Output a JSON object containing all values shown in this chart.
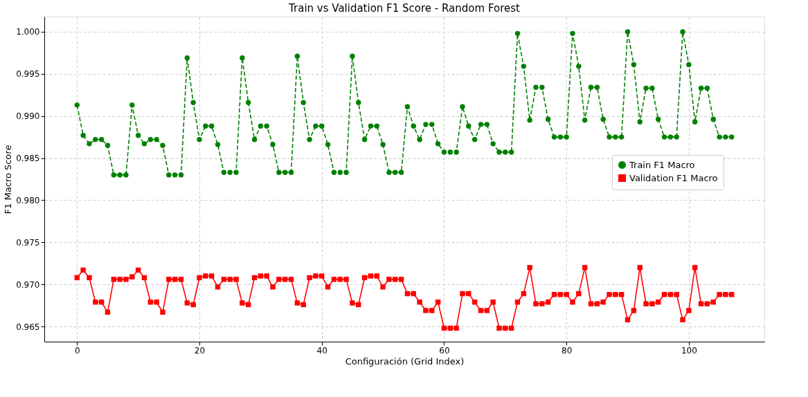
{
  "chart_data": {
    "type": "line",
    "title": "Train vs Validation F1 Score - Random Forest",
    "xlabel": "Configuración (Grid Index)",
    "ylabel": "F1 Macro Score",
    "x": [
      0,
      1,
      2,
      3,
      4,
      5,
      6,
      7,
      8,
      9,
      10,
      11,
      12,
      13,
      14,
      15,
      16,
      17,
      18,
      19,
      20,
      21,
      22,
      23,
      24,
      25,
      26,
      27,
      28,
      29,
      30,
      31,
      32,
      33,
      34,
      35,
      36,
      37,
      38,
      39,
      40,
      41,
      42,
      43,
      44,
      45,
      46,
      47,
      48,
      49,
      50,
      51,
      52,
      53,
      54,
      55,
      56,
      57,
      58,
      59,
      60,
      61,
      62,
      63,
      64,
      65,
      66,
      67,
      68,
      69,
      70,
      71,
      72,
      73,
      74,
      75,
      76,
      77,
      78,
      79,
      80,
      81,
      82,
      83,
      84,
      85,
      86,
      87,
      88,
      89,
      90,
      91,
      92,
      93,
      94,
      95,
      96,
      97,
      98,
      99,
      100,
      101,
      102,
      103,
      104,
      105,
      106,
      107
    ],
    "series": [
      {
        "name": "Train F1 Macro",
        "color": "#008000",
        "marker": "circle",
        "line_style": "dashed",
        "values": [
          0.9913,
          0.9877,
          0.9867,
          0.9872,
          0.9872,
          0.9865,
          0.983,
          0.983,
          0.983,
          0.9913,
          0.9877,
          0.9867,
          0.9872,
          0.9872,
          0.9865,
          0.983,
          0.983,
          0.983,
          0.9969,
          0.9916,
          0.9872,
          0.9888,
          0.9888,
          0.9866,
          0.9833,
          0.9833,
          0.9833,
          0.9969,
          0.9916,
          0.9872,
          0.9888,
          0.9888,
          0.9866,
          0.9833,
          0.9833,
          0.9833,
          0.9971,
          0.9916,
          0.9872,
          0.9888,
          0.9888,
          0.9866,
          0.9833,
          0.9833,
          0.9833,
          0.9971,
          0.9916,
          0.9872,
          0.9888,
          0.9888,
          0.9866,
          0.9833,
          0.9833,
          0.9833,
          0.9911,
          0.9888,
          0.9872,
          0.989,
          0.989,
          0.9867,
          0.9857,
          0.9857,
          0.9857,
          0.9911,
          0.9888,
          0.9872,
          0.989,
          0.989,
          0.9867,
          0.9857,
          0.9857,
          0.9857,
          0.9998,
          0.9959,
          0.9895,
          0.9934,
          0.9934,
          0.9896,
          0.9875,
          0.9875,
          0.9875,
          0.9998,
          0.9959,
          0.9895,
          0.9934,
          0.9934,
          0.9896,
          0.9875,
          0.9875,
          0.9875,
          1.0,
          0.9961,
          0.9893,
          0.9933,
          0.9933,
          0.9896,
          0.9875,
          0.9875,
          0.9875,
          1.0,
          0.9961,
          0.9893,
          0.9933,
          0.9933,
          0.9896,
          0.9875,
          0.9875,
          0.9875
        ]
      },
      {
        "name": "Validation F1 Macro",
        "color": "#ff0000",
        "marker": "square",
        "line_style": "solid",
        "values": [
          0.9708,
          0.9717,
          0.9708,
          0.9679,
          0.9679,
          0.9667,
          0.9706,
          0.9706,
          0.9706,
          0.9709,
          0.9717,
          0.9708,
          0.9679,
          0.9679,
          0.9667,
          0.9706,
          0.9706,
          0.9706,
          0.9678,
          0.9676,
          0.9708,
          0.971,
          0.971,
          0.9697,
          0.9706,
          0.9706,
          0.9706,
          0.9678,
          0.9676,
          0.9708,
          0.971,
          0.971,
          0.9697,
          0.9706,
          0.9706,
          0.9706,
          0.9678,
          0.9676,
          0.9708,
          0.971,
          0.971,
          0.9697,
          0.9706,
          0.9706,
          0.9706,
          0.9678,
          0.9676,
          0.9708,
          0.971,
          0.971,
          0.9697,
          0.9706,
          0.9706,
          0.9706,
          0.9689,
          0.9689,
          0.9679,
          0.9669,
          0.9669,
          0.9679,
          0.9648,
          0.9648,
          0.9648,
          0.9689,
          0.9689,
          0.9679,
          0.9669,
          0.9669,
          0.9679,
          0.9648,
          0.9648,
          0.9648,
          0.9679,
          0.9689,
          0.972,
          0.9677,
          0.9677,
          0.9679,
          0.9688,
          0.9688,
          0.9688,
          0.9679,
          0.9689,
          0.972,
          0.9677,
          0.9677,
          0.9679,
          0.9688,
          0.9688,
          0.9688,
          0.9658,
          0.9669,
          0.972,
          0.9677,
          0.9677,
          0.9679,
          0.9688,
          0.9688,
          0.9688,
          0.9658,
          0.9669,
          0.972,
          0.9677,
          0.9677,
          0.9679,
          0.9688,
          0.9688,
          0.9688
        ]
      }
    ],
    "xlim": [
      -5.35,
      112.35
    ],
    "xticks": [
      0,
      20,
      40,
      60,
      80,
      100
    ],
    "ylim": [
      0.9632,
      1.0018
    ],
    "yticks": [
      {
        "value": 0.965,
        "label": "0.965"
      },
      {
        "value": 0.97,
        "label": "0.970"
      },
      {
        "value": 0.975,
        "label": "0.975"
      },
      {
        "value": 0.98,
        "label": "0.980"
      },
      {
        "value": 0.985,
        "label": "0.985"
      },
      {
        "value": 0.99,
        "label": "0.990"
      },
      {
        "value": 0.995,
        "label": "0.995"
      },
      {
        "value": 1.0,
        "label": "1.000"
      }
    ],
    "grid": true,
    "legend": "right"
  }
}
